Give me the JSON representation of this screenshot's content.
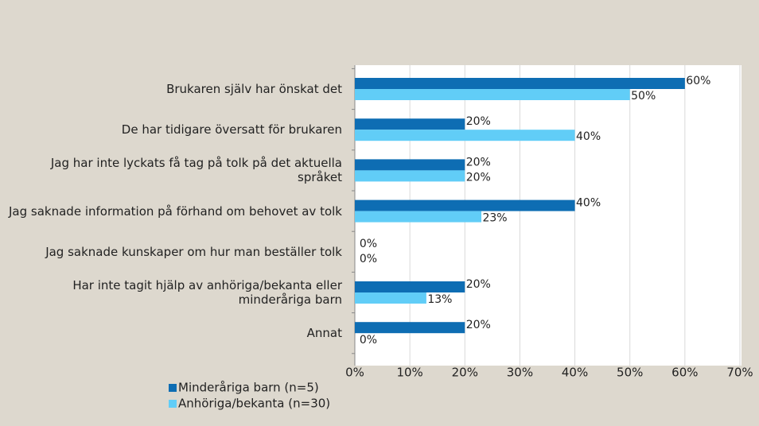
{
  "chart_data": {
    "type": "barh",
    "categories": [
      "Brukaren själv har önskat det",
      "De har tidigare översatt för brukaren",
      "Jag har inte lyckats få tag på tolk på det aktuella språket",
      "Jag saknade information på förhand om behovet av tolk",
      "Jag saknade kunskaper om hur man beställer tolk",
      "Har inte tagit hjälp av anhöriga/bekanta eller minderåriga barn",
      "Annat"
    ],
    "series": [
      {
        "name": "Minderåriga barn (n=5)",
        "color": "#0e6db3",
        "values": [
          60,
          20,
          20,
          40,
          0,
          20,
          20
        ],
        "value_labels": [
          "60%",
          "20%",
          "20%",
          "40%",
          "0%",
          "20%",
          "20%"
        ]
      },
      {
        "name": "Anhöriga/bekanta (n=30)",
        "color": "#61cdf7",
        "values": [
          50,
          40,
          20,
          23,
          0,
          13,
          0
        ],
        "value_labels": [
          "50%",
          "40%",
          "20%",
          "23%",
          "0%",
          "13%",
          "0%"
        ]
      }
    ],
    "xlim": [
      0,
      70
    ],
    "xticks": [
      {
        "value": 0,
        "label": "0%"
      },
      {
        "value": 10,
        "label": "10%"
      },
      {
        "value": 20,
        "label": "20%"
      },
      {
        "value": 30,
        "label": "30%"
      },
      {
        "value": 40,
        "label": "40%"
      },
      {
        "value": 50,
        "label": "50%"
      },
      {
        "value": 60,
        "label": "60%"
      },
      {
        "value": 70,
        "label": "70%"
      }
    ],
    "grid": true,
    "legend": "bottom-left"
  }
}
